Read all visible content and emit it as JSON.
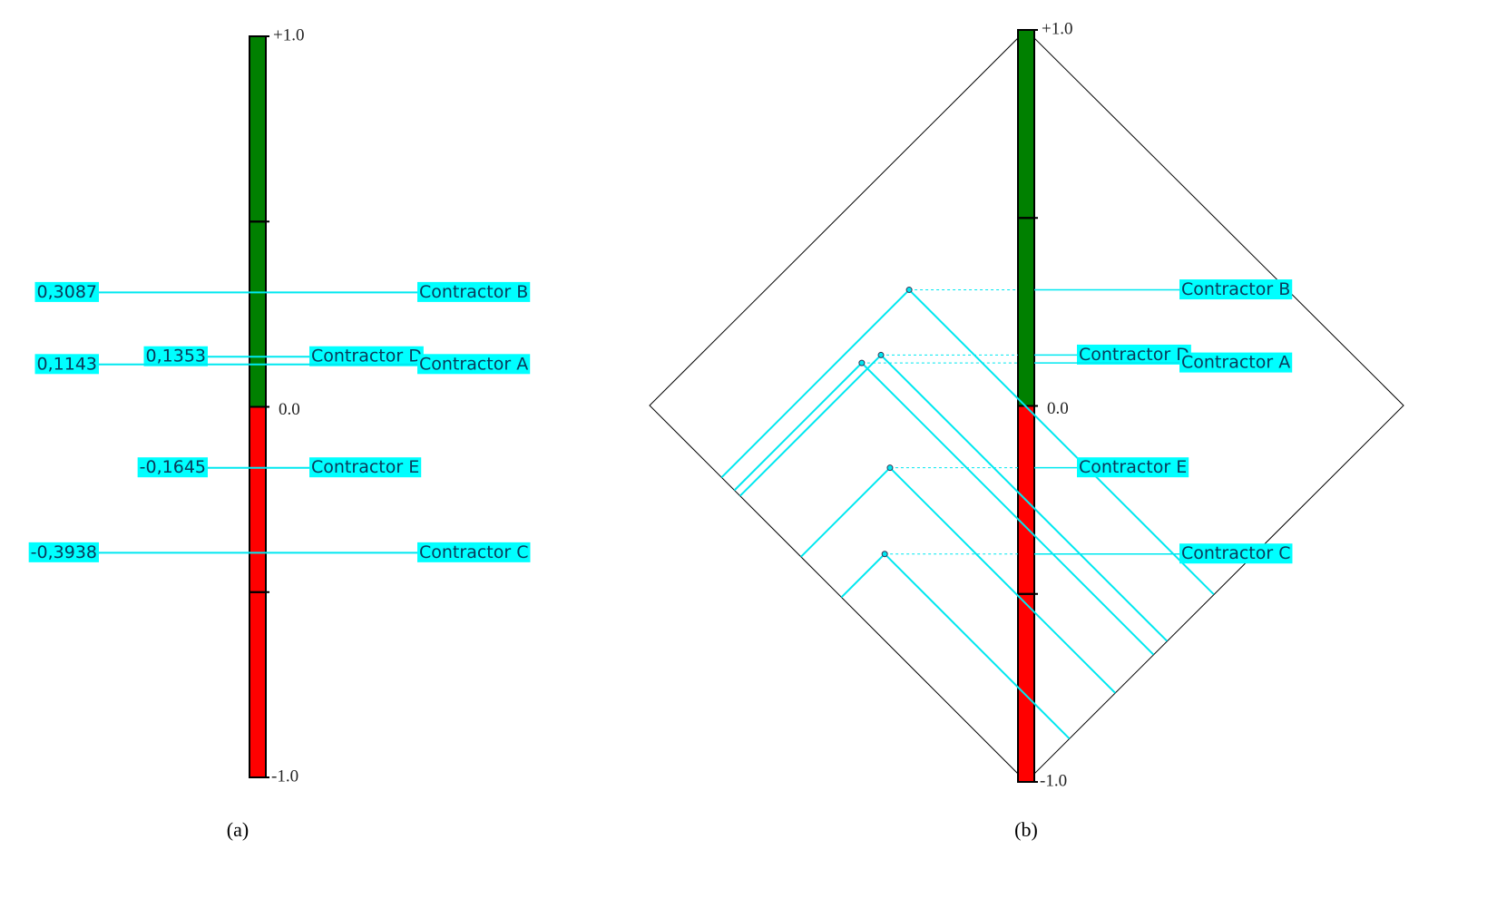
{
  "panels": [
    {
      "caption": "(a)",
      "scale": {
        "range": [
          -1,
          1
        ],
        "ticks": [
          -1,
          -0.5,
          0,
          0.5,
          1
        ],
        "top_label": "+1.0",
        "middle_label": "0.0",
        "bottom_label": "-1.0",
        "positive_color": "#008000",
        "negative_color": "#ff0000"
      },
      "items": [
        {
          "name": "Contractor B",
          "value": 0.3087,
          "value_label": "0,3087"
        },
        {
          "name": "Contractor D",
          "value": 0.1353,
          "value_label": "0,1353"
        },
        {
          "name": "Contractor A",
          "value": 0.1143,
          "value_label": "0,1143"
        },
        {
          "name": "Contractor E",
          "value": -0.1645,
          "value_label": "-0,1645"
        },
        {
          "name": "Contractor C",
          "value": -0.3938,
          "value_label": "-0,3938"
        }
      ]
    },
    {
      "caption": "(b)",
      "scale": {
        "range": [
          -1,
          1
        ],
        "ticks": [
          -1,
          -0.5,
          0,
          0.5,
          1
        ],
        "top_label": "+1.0",
        "middle_label": "0.0",
        "bottom_label": "-1.0",
        "positive_color": "#008000",
        "negative_color": "#ff0000"
      },
      "items": [
        {
          "name": "Contractor B",
          "value": 0.3087,
          "x": -0.311
        },
        {
          "name": "Contractor D",
          "value": 0.1353,
          "x": -0.386
        },
        {
          "name": "Contractor A",
          "value": 0.1143,
          "x": -0.437
        },
        {
          "name": "Contractor E",
          "value": -0.1645,
          "x": -0.362
        },
        {
          "name": "Contractor C",
          "value": -0.3938,
          "x": -0.376
        }
      ]
    }
  ]
}
